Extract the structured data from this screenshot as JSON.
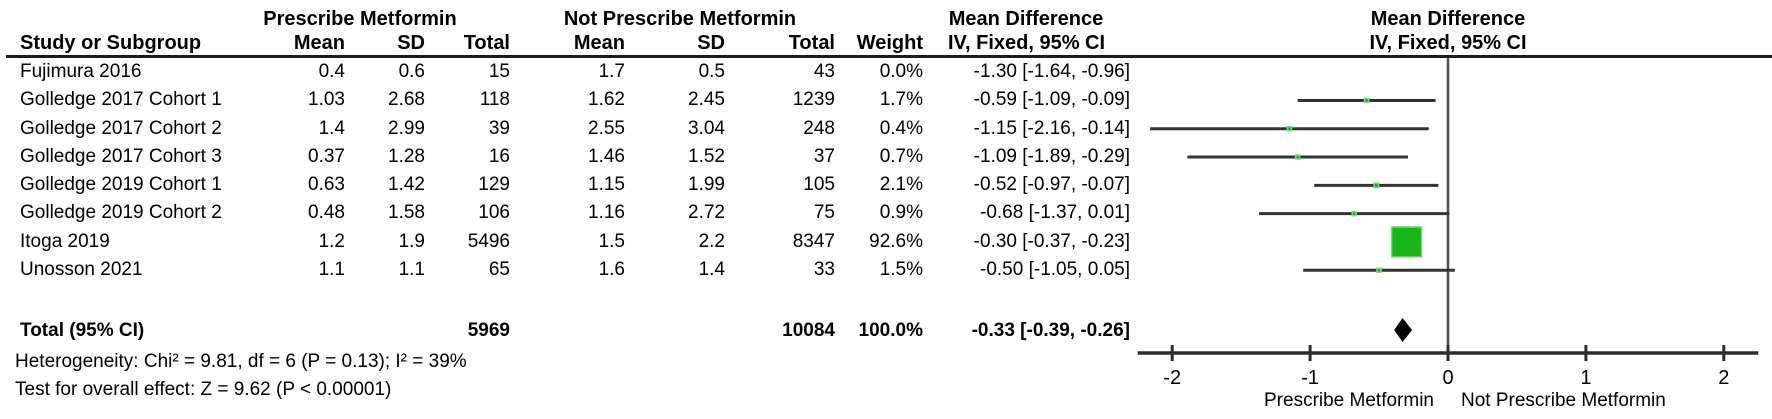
{
  "header": {
    "group1": "Prescribe Metformin",
    "group2": "Not Prescribe Metformin",
    "md_left": "Mean Difference",
    "md_right": "Mean Difference",
    "iv_left": "IV, Fixed, 95% CI",
    "iv_right": "IV, Fixed, 95% CI",
    "cols": {
      "study": "Study or Subgroup",
      "mean": "Mean",
      "sd": "SD",
      "total": "Total",
      "weight": "Weight"
    }
  },
  "chart_data": {
    "type": "forest",
    "effect_measure": "Mean Difference, IV, Fixed, 95% CI",
    "studies": [
      {
        "name": "Fujimura 2016",
        "mean1": "0.4",
        "sd1": "0.6",
        "total1": "15",
        "mean2": "1.7",
        "sd2": "0.5",
        "total2": "43",
        "weight": "0.0%",
        "ci_text": "-1.30 [-1.64, -0.96]",
        "md": -1.3,
        "lo": -1.64,
        "hi": -0.96,
        "weight_pct": 0.0
      },
      {
        "name": "Golledge 2017 Cohort 1",
        "mean1": "1.03",
        "sd1": "2.68",
        "total1": "118",
        "mean2": "1.62",
        "sd2": "2.45",
        "total2": "1239",
        "weight": "1.7%",
        "ci_text": "-0.59 [-1.09, -0.09]",
        "md": -0.59,
        "lo": -1.09,
        "hi": -0.09,
        "weight_pct": 1.7
      },
      {
        "name": "Golledge 2017 Cohort 2",
        "mean1": "1.4",
        "sd1": "2.99",
        "total1": "39",
        "mean2": "2.55",
        "sd2": "3.04",
        "total2": "248",
        "weight": "0.4%",
        "ci_text": "-1.15 [-2.16, -0.14]",
        "md": -1.15,
        "lo": -2.16,
        "hi": -0.14,
        "weight_pct": 0.4
      },
      {
        "name": "Golledge 2017 Cohort 3",
        "mean1": "0.37",
        "sd1": "1.28",
        "total1": "16",
        "mean2": "1.46",
        "sd2": "1.52",
        "total2": "37",
        "weight": "0.7%",
        "ci_text": "-1.09 [-1.89, -0.29]",
        "md": -1.09,
        "lo": -1.89,
        "hi": -0.29,
        "weight_pct": 0.7
      },
      {
        "name": "Golledge 2019 Cohort 1",
        "mean1": "0.63",
        "sd1": "1.42",
        "total1": "129",
        "mean2": "1.15",
        "sd2": "1.99",
        "total2": "105",
        "weight": "2.1%",
        "ci_text": "-0.52 [-0.97, -0.07]",
        "md": -0.52,
        "lo": -0.97,
        "hi": -0.07,
        "weight_pct": 2.1
      },
      {
        "name": "Golledge 2019 Cohort 2",
        "mean1": "0.48",
        "sd1": "1.58",
        "total1": "106",
        "mean2": "1.16",
        "sd2": "2.72",
        "total2": "75",
        "weight": "0.9%",
        "ci_text": "-0.68 [-1.37, 0.01]",
        "md": -0.68,
        "lo": -1.37,
        "hi": 0.01,
        "weight_pct": 0.9
      },
      {
        "name": "Itoga 2019",
        "mean1": "1.2",
        "sd1": "1.9",
        "total1": "5496",
        "mean2": "1.5",
        "sd2": "2.2",
        "total2": "8347",
        "weight": "92.6%",
        "ci_text": "-0.30 [-0.37, -0.23]",
        "md": -0.3,
        "lo": -0.37,
        "hi": -0.23,
        "weight_pct": 92.6
      },
      {
        "name": "Unosson 2021",
        "mean1": "1.1",
        "sd1": "1.1",
        "total1": "65",
        "mean2": "1.6",
        "sd2": "1.4",
        "total2": "33",
        "weight": "1.5%",
        "ci_text": "-0.50 [-1.05, 0.05]",
        "md": -0.5,
        "lo": -1.05,
        "hi": 0.05,
        "weight_pct": 1.5
      }
    ],
    "total": {
      "label": "Total (95% CI)",
      "total1": "5969",
      "total2": "10084",
      "weight": "100.0%",
      "ci_text": "-0.33 [-0.39, -0.26]",
      "md": -0.33,
      "lo": -0.39,
      "hi": -0.26
    },
    "heterogeneity": "Heterogeneity: Chi² = 9.81, df = 6 (P = 0.13); I² = 39%",
    "overall_effect": "Test for overall effect: Z = 9.62 (P < 0.00001)",
    "axis": {
      "ticks": [
        -2,
        -1,
        0,
        1,
        2
      ],
      "tick_labels": [
        "-2",
        "-1",
        "0",
        "1",
        "2"
      ],
      "xlim": [
        -2.25,
        2.25
      ],
      "favours_left": "Prescribe Metformin",
      "favours_right": "Not Prescribe Metformin"
    },
    "colors": {
      "marker_green": "#17b517",
      "marker_border": "#7ed87e",
      "diamond": "#000000",
      "ci_line": "#333333",
      "axis_line": "#2b2b2b",
      "zero_line": "#4f4f4f"
    }
  }
}
